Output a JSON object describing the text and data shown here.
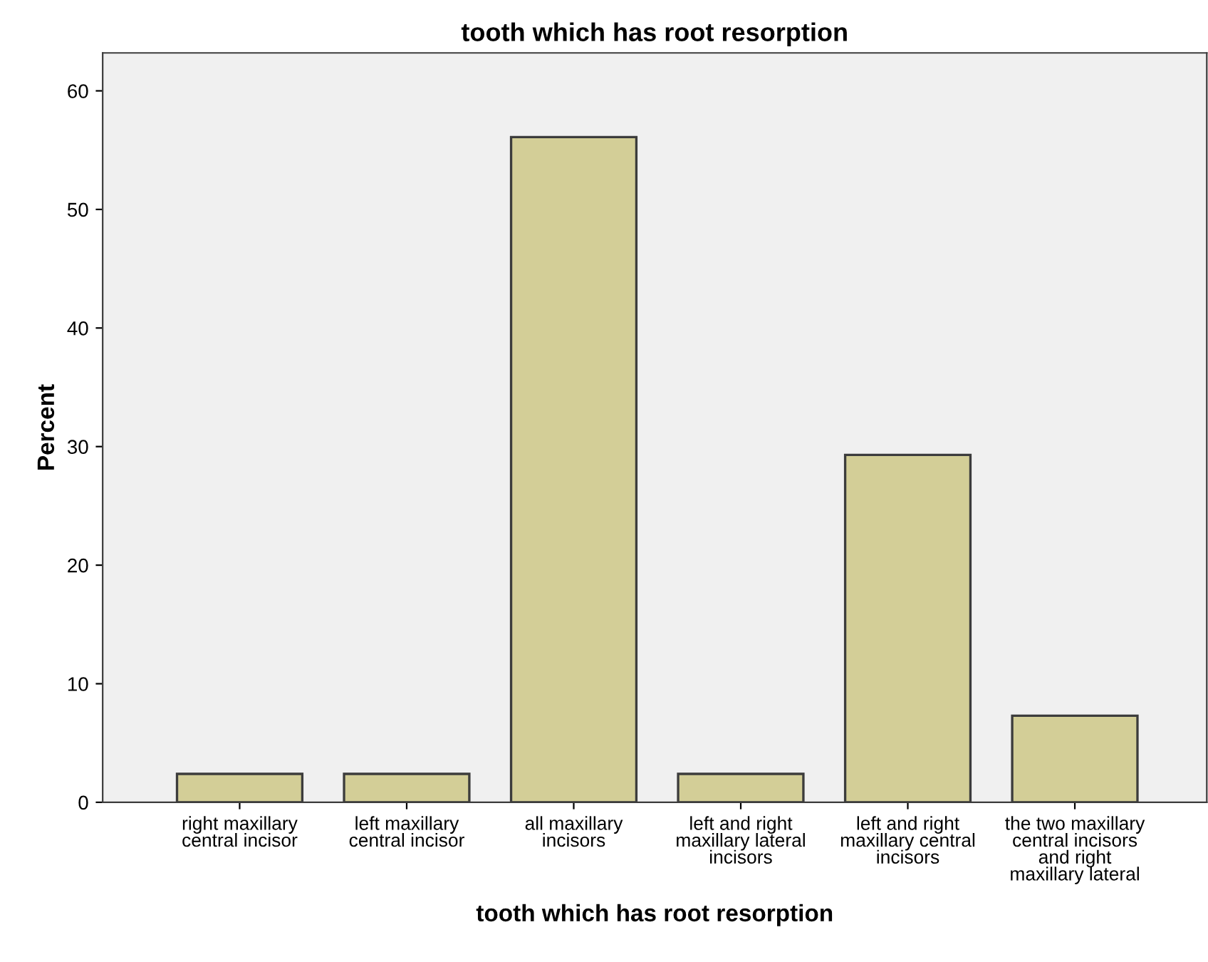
{
  "chart_data": {
    "type": "bar",
    "title": "tooth which has root resorption",
    "xlabel": "tooth which has root resorption",
    "ylabel": "Percent",
    "categories": [
      "right maxillary\ncentral incisor",
      "left maxillary\ncentral incisor",
      "all maxillary\nincisors",
      "left and right\nmaxillary lateral\nincisors",
      "left and right\nmaxillary central\nincisors",
      "the two maxillary\ncentral incisors\nand right\nmaxillary lateral"
    ],
    "values": [
      2.4,
      2.4,
      56.1,
      2.4,
      29.3,
      7.3
    ],
    "color": "#d3ce97",
    "ylim": [
      0,
      63.2
    ],
    "yticks": [
      0,
      10,
      20,
      30,
      40,
      50,
      60
    ],
    "grid": false,
    "legend": false
  }
}
